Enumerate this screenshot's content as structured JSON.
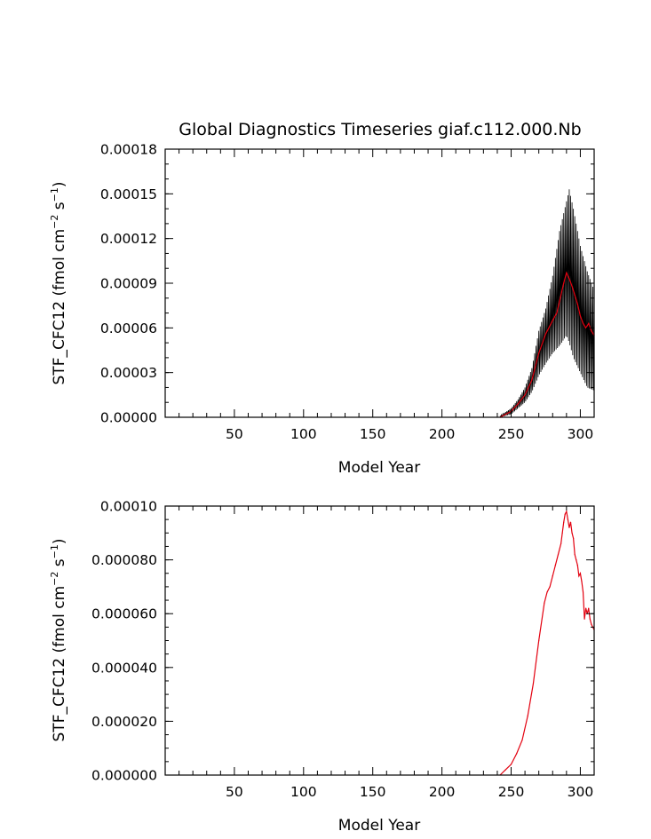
{
  "colors": {
    "monthly": "#000000",
    "annual": "#e3000f",
    "background": "#ffffff"
  },
  "chart_data": [
    {
      "type": "line",
      "title": "Global Diagnostics Timeseries giaf.c112.000.Nb",
      "xlabel": "Model Year",
      "ylabel_main": "STF_CFC12 (fmol cm",
      "ylabel_exp1": "−2",
      "ylabel_mid": " s",
      "ylabel_exp2": "−1",
      "ylabel_end": ")",
      "xlim": [
        0,
        310
      ],
      "ylim": [
        0,
        0.00018
      ],
      "x_ticks": [
        50,
        100,
        150,
        200,
        250,
        300
      ],
      "x_tick_labels": [
        "50",
        "100",
        "150",
        "200",
        "250",
        "300"
      ],
      "y_ticks": [
        0,
        3e-05,
        6e-05,
        9e-05,
        0.00012,
        0.00015,
        0.00018
      ],
      "y_tick_labels": [
        "0.00000",
        "0.00003",
        "0.00006",
        "0.00009",
        "0.00012",
        "0.00015",
        "0.00018"
      ],
      "series": [
        {
          "name": "monthly",
          "color": "#000000",
          "kind": "envelope",
          "x": [
            242,
            250,
            255,
            260,
            265,
            270,
            275,
            280,
            285,
            290,
            292,
            295,
            300,
            305,
            310
          ],
          "min": [
            0,
            2e-06,
            6e-06,
            1e-05,
            1.7e-05,
            2.8e-05,
            3.6e-05,
            4.3e-05,
            4.8e-05,
            5.5e-05,
            5e-05,
            4e-05,
            3e-05,
            2e-05,
            1.8e-05
          ],
          "max": [
            1e-06,
            6e-06,
            1.2e-05,
            2e-05,
            3.3e-05,
            5.8e-05,
            7.3e-05,
            9.5e-05,
            0.000125,
            0.000145,
            0.000153,
            0.00014,
            0.000115,
            9.8e-05,
            8.5e-05
          ]
        },
        {
          "name": "annual",
          "color": "#e3000f",
          "x": [
            242,
            250,
            255,
            260,
            265,
            270,
            275,
            280,
            283,
            285,
            288,
            290,
            292,
            294,
            296,
            298,
            300,
            302,
            304,
            306,
            308,
            310
          ],
          "y": [
            0,
            4e-06,
            9e-06,
            1.5e-05,
            2.5e-05,
            4.3e-05,
            5.6e-05,
            6.5e-05,
            7e-05,
            7.8e-05,
            9e-05,
            9.7e-05,
            9.3e-05,
            8.8e-05,
            8.2e-05,
            7.6e-05,
            6.8e-05,
            6.3e-05,
            6e-05,
            6.3e-05,
            5.8e-05,
            5.5e-05
          ]
        }
      ]
    },
    {
      "type": "line",
      "title": "",
      "xlabel": "Model Year",
      "ylabel_main": "STF_CFC12 (fmol cm",
      "ylabel_exp1": "−2",
      "ylabel_mid": " s",
      "ylabel_exp2": "−1",
      "ylabel_end": ")",
      "xlim": [
        0,
        310
      ],
      "ylim": [
        0,
        0.0001
      ],
      "x_ticks": [
        50,
        100,
        150,
        200,
        250,
        300
      ],
      "x_tick_labels": [
        "50",
        "100",
        "150",
        "200",
        "250",
        "300"
      ],
      "y_ticks": [
        0,
        2e-05,
        4e-05,
        6e-05,
        8e-05,
        0.0001
      ],
      "y_tick_labels": [
        "0.000000",
        "0.000020",
        "0.000040",
        "0.000060",
        "0.000080",
        "0.00010"
      ],
      "series": [
        {
          "name": "annual",
          "color": "#e3000f",
          "x": [
            242,
            246,
            250,
            254,
            258,
            262,
            266,
            270,
            274,
            276,
            278,
            280,
            282,
            284,
            286,
            287,
            288,
            289,
            290,
            291,
            292,
            293,
            294,
            295,
            296,
            297,
            298,
            299,
            300,
            301,
            302,
            303,
            304,
            305,
            306,
            307,
            308,
            309,
            310
          ],
          "y": [
            0,
            2e-06,
            4e-06,
            8e-06,
            1.3e-05,
            2.2e-05,
            3.4e-05,
            5e-05,
            6.4e-05,
            6.8e-05,
            7e-05,
            7.4e-05,
            7.8e-05,
            8.2e-05,
            8.6e-05,
            9e-05,
            9.4e-05,
            9.7e-05,
            9.8e-05,
            9.5e-05,
            9.2e-05,
            9.4e-05,
            9e-05,
            8.8e-05,
            8.2e-05,
            8e-05,
            7.8e-05,
            7.4e-05,
            7.5e-05,
            7.2e-05,
            6.8e-05,
            5.8e-05,
            6.2e-05,
            6e-05,
            6.2e-05,
            5.8e-05,
            5.6e-05,
            5.5e-05,
            5.4e-05
          ]
        }
      ]
    }
  ]
}
